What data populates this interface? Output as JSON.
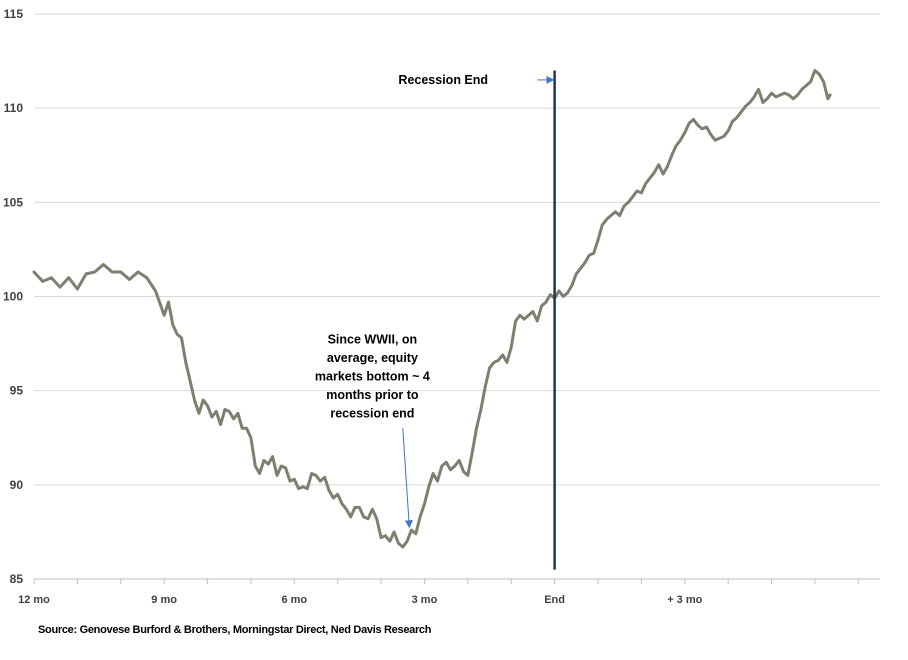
{
  "chart_data": {
    "type": "line",
    "title": "",
    "xlabel": "",
    "ylabel": "",
    "ylim": [
      85,
      115
    ],
    "yticks": [
      85,
      90,
      95,
      100,
      105,
      110,
      115
    ],
    "xlim": [
      -12,
      7.5
    ],
    "xticks": [
      {
        "x": -12,
        "label": "12 mo"
      },
      {
        "x": -9,
        "label": "9 mo"
      },
      {
        "x": -6,
        "label": "6 mo"
      },
      {
        "x": -3,
        "label": "3 mo"
      },
      {
        "x": 0,
        "label": "End"
      },
      {
        "x": 3,
        "label": "+ 3 mo"
      }
    ],
    "grid": "horizontal",
    "legend": "none",
    "series": [
      {
        "color": "#7f7f70",
        "points": [
          [
            -12.0,
            101.3
          ],
          [
            -11.8,
            100.8
          ],
          [
            -11.6,
            101.0
          ],
          [
            -11.4,
            100.5
          ],
          [
            -11.2,
            101.0
          ],
          [
            -11.0,
            100.4
          ],
          [
            -10.8,
            101.2
          ],
          [
            -10.6,
            101.3
          ],
          [
            -10.4,
            101.7
          ],
          [
            -10.2,
            101.3
          ],
          [
            -10.0,
            101.3
          ],
          [
            -9.8,
            100.9
          ],
          [
            -9.6,
            101.3
          ],
          [
            -9.4,
            101.0
          ],
          [
            -9.2,
            100.3
          ],
          [
            -9.0,
            99.0
          ],
          [
            -8.9,
            99.7
          ],
          [
            -8.8,
            98.5
          ],
          [
            -8.7,
            98.0
          ],
          [
            -8.6,
            97.8
          ],
          [
            -8.5,
            96.5
          ],
          [
            -8.4,
            95.5
          ],
          [
            -8.3,
            94.5
          ],
          [
            -8.2,
            93.8
          ],
          [
            -8.1,
            94.5
          ],
          [
            -8.0,
            94.2
          ],
          [
            -7.9,
            93.6
          ],
          [
            -7.8,
            93.9
          ],
          [
            -7.7,
            93.2
          ],
          [
            -7.6,
            94.0
          ],
          [
            -7.5,
            93.9
          ],
          [
            -7.4,
            93.5
          ],
          [
            -7.3,
            93.8
          ],
          [
            -7.2,
            93.0
          ],
          [
            -7.1,
            93.0
          ],
          [
            -7.0,
            92.5
          ],
          [
            -6.9,
            91.0
          ],
          [
            -6.8,
            90.6
          ],
          [
            -6.7,
            91.3
          ],
          [
            -6.6,
            91.1
          ],
          [
            -6.5,
            91.5
          ],
          [
            -6.4,
            90.5
          ],
          [
            -6.3,
            91.0
          ],
          [
            -6.2,
            90.9
          ],
          [
            -6.1,
            90.2
          ],
          [
            -6.0,
            90.3
          ],
          [
            -5.9,
            89.8
          ],
          [
            -5.8,
            89.9
          ],
          [
            -5.7,
            89.8
          ],
          [
            -5.6,
            90.6
          ],
          [
            -5.5,
            90.5
          ],
          [
            -5.4,
            90.2
          ],
          [
            -5.3,
            90.4
          ],
          [
            -5.2,
            89.7
          ],
          [
            -5.1,
            89.3
          ],
          [
            -5.0,
            89.5
          ],
          [
            -4.9,
            89.0
          ],
          [
            -4.8,
            88.7
          ],
          [
            -4.7,
            88.3
          ],
          [
            -4.6,
            88.8
          ],
          [
            -4.5,
            88.8
          ],
          [
            -4.4,
            88.3
          ],
          [
            -4.3,
            88.2
          ],
          [
            -4.2,
            88.7
          ],
          [
            -4.1,
            88.2
          ],
          [
            -4.0,
            87.2
          ],
          [
            -3.9,
            87.3
          ],
          [
            -3.8,
            87.0
          ],
          [
            -3.7,
            87.5
          ],
          [
            -3.6,
            86.9
          ],
          [
            -3.5,
            86.7
          ],
          [
            -3.4,
            87.0
          ],
          [
            -3.3,
            87.6
          ],
          [
            -3.2,
            87.4
          ],
          [
            -3.1,
            88.3
          ],
          [
            -3.0,
            89.0
          ],
          [
            -2.9,
            89.9
          ],
          [
            -2.8,
            90.6
          ],
          [
            -2.7,
            90.2
          ],
          [
            -2.6,
            91.0
          ],
          [
            -2.5,
            91.2
          ],
          [
            -2.4,
            90.8
          ],
          [
            -2.3,
            91.0
          ],
          [
            -2.2,
            91.3
          ],
          [
            -2.1,
            90.7
          ],
          [
            -2.0,
            90.5
          ],
          [
            -1.9,
            91.7
          ],
          [
            -1.8,
            93.0
          ],
          [
            -1.7,
            94.0
          ],
          [
            -1.6,
            95.2
          ],
          [
            -1.5,
            96.2
          ],
          [
            -1.4,
            96.5
          ],
          [
            -1.3,
            96.6
          ],
          [
            -1.2,
            96.9
          ],
          [
            -1.1,
            96.5
          ],
          [
            -1.0,
            97.3
          ],
          [
            -0.9,
            98.7
          ],
          [
            -0.8,
            99.0
          ],
          [
            -0.7,
            98.8
          ],
          [
            -0.6,
            99.0
          ],
          [
            -0.5,
            99.2
          ],
          [
            -0.4,
            98.7
          ],
          [
            -0.3,
            99.5
          ],
          [
            -0.2,
            99.7
          ],
          [
            -0.1,
            100.1
          ],
          [
            0.0,
            99.9
          ],
          [
            0.1,
            100.3
          ],
          [
            0.2,
            100.0
          ],
          [
            0.3,
            100.2
          ],
          [
            0.4,
            100.6
          ],
          [
            0.5,
            101.2
          ],
          [
            0.6,
            101.5
          ],
          [
            0.7,
            101.8
          ],
          [
            0.8,
            102.2
          ],
          [
            0.9,
            102.3
          ],
          [
            1.0,
            103.0
          ],
          [
            1.1,
            103.8
          ],
          [
            1.2,
            104.1
          ],
          [
            1.3,
            104.3
          ],
          [
            1.4,
            104.5
          ],
          [
            1.5,
            104.3
          ],
          [
            1.6,
            104.8
          ],
          [
            1.7,
            105.0
          ],
          [
            1.8,
            105.3
          ],
          [
            1.9,
            105.6
          ],
          [
            2.0,
            105.5
          ],
          [
            2.1,
            106.0
          ],
          [
            2.2,
            106.3
          ],
          [
            2.3,
            106.6
          ],
          [
            2.4,
            107.0
          ],
          [
            2.5,
            106.5
          ],
          [
            2.6,
            106.9
          ],
          [
            2.7,
            107.5
          ],
          [
            2.8,
            108.0
          ],
          [
            2.9,
            108.3
          ],
          [
            3.0,
            108.7
          ],
          [
            3.1,
            109.2
          ],
          [
            3.2,
            109.4
          ],
          [
            3.3,
            109.1
          ],
          [
            3.4,
            108.9
          ],
          [
            3.5,
            109.0
          ],
          [
            3.6,
            108.6
          ],
          [
            3.7,
            108.3
          ],
          [
            3.8,
            108.4
          ],
          [
            3.9,
            108.5
          ],
          [
            4.0,
            108.8
          ],
          [
            4.1,
            109.3
          ],
          [
            4.2,
            109.5
          ],
          [
            4.3,
            109.8
          ],
          [
            4.4,
            110.1
          ],
          [
            4.5,
            110.3
          ],
          [
            4.6,
            110.6
          ],
          [
            4.7,
            111.0
          ],
          [
            4.8,
            110.3
          ],
          [
            4.9,
            110.5
          ],
          [
            5.0,
            110.8
          ],
          [
            5.1,
            110.6
          ],
          [
            5.2,
            110.7
          ],
          [
            5.3,
            110.8
          ],
          [
            5.4,
            110.7
          ],
          [
            5.5,
            110.5
          ],
          [
            5.6,
            110.7
          ],
          [
            5.7,
            111.0
          ],
          [
            5.8,
            111.2
          ],
          [
            5.9,
            111.4
          ],
          [
            6.0,
            112.0
          ],
          [
            6.1,
            111.8
          ],
          [
            6.2,
            111.4
          ],
          [
            6.3,
            110.5
          ],
          [
            6.35,
            110.7
          ]
        ]
      }
    ],
    "annotations": [
      {
        "type": "vline",
        "x": 0,
        "y_from": 85.5,
        "y_to": 112
      },
      {
        "type": "arrow",
        "label": "Recession End",
        "text_at": [
          -3.6,
          111.5
        ],
        "from": [
          -0.4,
          111.5
        ],
        "to": [
          -0.05,
          111.5
        ]
      },
      {
        "type": "arrow",
        "label_lines": [
          "Since WWII, on",
          "average, equity",
          "markets bottom ~ 4",
          "months prior to",
          "recession end"
        ],
        "text_at": [
          -4.2,
          97.5
        ],
        "from": [
          -3.5,
          93.0
        ],
        "to": [
          -3.35,
          87.8
        ]
      }
    ]
  },
  "source_text": "Source: Genovese Burford & Brothers, Morningstar Direct, Ned Davis Research"
}
